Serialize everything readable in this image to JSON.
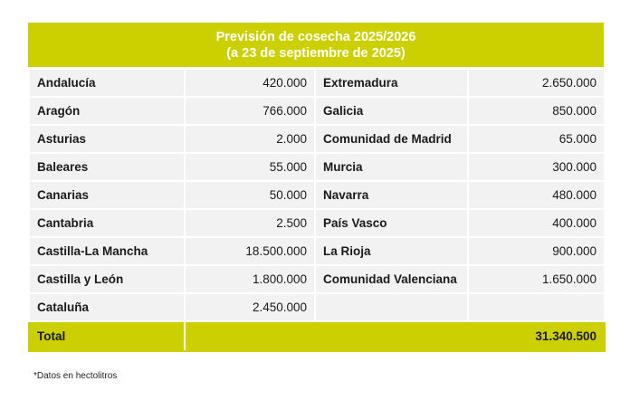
{
  "title": {
    "line1": "Previsión de cosecha 2025/2026",
    "line2": "(a 23 de septiembre de 2025)"
  },
  "rows": [
    {
      "left_name": "Andalucía",
      "left_value": "420.000",
      "right_name": "Extremadura",
      "right_value": "2.650.000"
    },
    {
      "left_name": "Aragón",
      "left_value": "766.000",
      "right_name": "Galicia",
      "right_value": "850.000"
    },
    {
      "left_name": "Asturias",
      "left_value": "2.000",
      "right_name": "Comunidad de Madrid",
      "right_value": "65.000"
    },
    {
      "left_name": "Baleares",
      "left_value": "55.000",
      "right_name": "Murcia",
      "right_value": "300.000"
    },
    {
      "left_name": "Canarias",
      "left_value": "50.000",
      "right_name": "Navarra",
      "right_value": "480.000"
    },
    {
      "left_name": "Cantabria",
      "left_value": "2.500",
      "right_name": "País Vasco",
      "right_value": "400.000"
    },
    {
      "left_name": "Castilla-La Mancha",
      "left_value": "18.500.000",
      "right_name": "La Rioja",
      "right_value": "900.000"
    },
    {
      "left_name": "Castilla y León",
      "left_value": "1.800.000",
      "right_name": "Comunidad Valenciana",
      "right_value": "1.650.000"
    },
    {
      "left_name": "Cataluña",
      "left_value": "2.450.000",
      "right_name": "",
      "right_value": ""
    }
  ],
  "total": {
    "label": "Total",
    "value": "31.340.500"
  },
  "footnote": "*Datos en hectolitros",
  "colors": {
    "accent": "#cccf00",
    "cell_bg": "#f2f2f2"
  }
}
